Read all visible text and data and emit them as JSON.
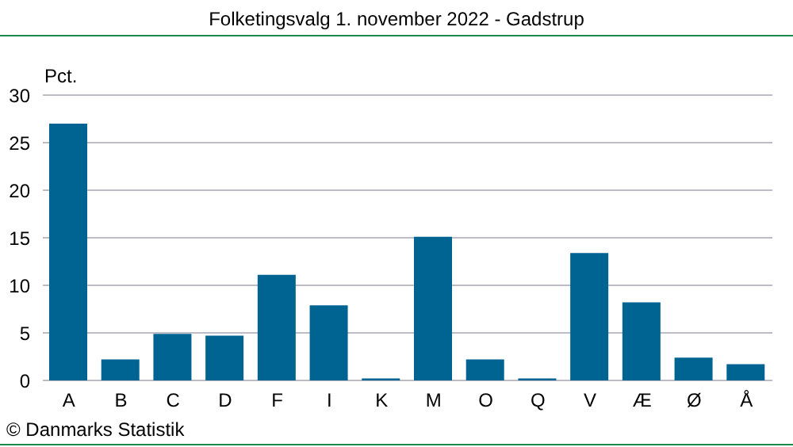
{
  "chart_data": {
    "type": "bar",
    "title": "Folketingsvalg 1. november 2022 - Gadstrup",
    "ylabel": "Pct.",
    "categories": [
      "A",
      "B",
      "C",
      "D",
      "F",
      "I",
      "K",
      "M",
      "O",
      "Q",
      "V",
      "Æ",
      "Ø",
      "Å"
    ],
    "values": [
      27.0,
      2.2,
      4.9,
      4.7,
      11.1,
      7.9,
      0.2,
      15.1,
      2.2,
      0.2,
      13.4,
      8.2,
      2.4,
      1.7
    ],
    "color": "#006492",
    "ylim": [
      0,
      30
    ],
    "yticks": [
      0,
      5,
      10,
      15,
      20,
      25,
      30
    ],
    "grid": "y",
    "annotations": [
      "© Danmarks Statistik"
    ]
  }
}
